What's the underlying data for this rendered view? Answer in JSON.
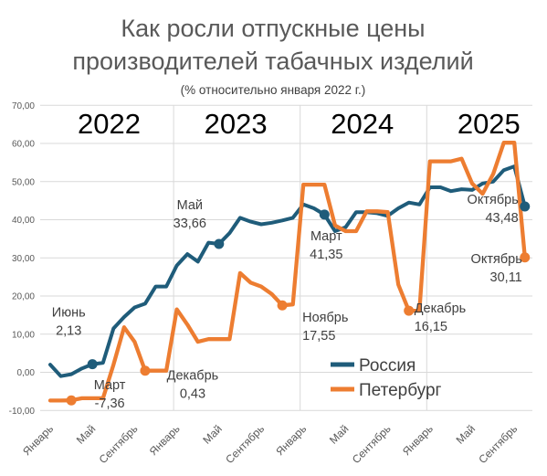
{
  "chart_data": {
    "type": "line",
    "title": [
      "Как росли отпускные цены",
      "производителей табачных изделий"
    ],
    "subtitle": "(% относительно января 2022 г.)",
    "ylim": [
      -10,
      70
    ],
    "y_ticks": [
      "-10,00",
      "0,00",
      "10,00",
      "20,00",
      "30,00",
      "40,00",
      "50,00",
      "60,00",
      "70,00"
    ],
    "y_tick_values": [
      -10,
      0,
      10,
      20,
      30,
      40,
      50,
      60,
      70
    ],
    "x_ticks": [
      {
        "index": 0,
        "label": "Январь"
      },
      {
        "index": 4,
        "label": "Май"
      },
      {
        "index": 8,
        "label": "Сентябрь"
      },
      {
        "index": 12,
        "label": "Январь"
      },
      {
        "index": 16,
        "label": "Май"
      },
      {
        "index": 20,
        "label": "Сентябрь"
      },
      {
        "index": 24,
        "label": "Январь"
      },
      {
        "index": 28,
        "label": "Май"
      },
      {
        "index": 32,
        "label": "Сентябрь"
      },
      {
        "index": 36,
        "label": "Январь"
      },
      {
        "index": 40,
        "label": "Май"
      },
      {
        "index": 44,
        "label": "Сентябрь"
      }
    ],
    "years": [
      {
        "label": "2022",
        "start": 0
      },
      {
        "label": "2023",
        "start": 12
      },
      {
        "label": "2024",
        "start": 24
      },
      {
        "label": "2025",
        "start": 36
      }
    ],
    "grid": true,
    "legend_position": "bottom-right",
    "series": [
      {
        "name": "Россия",
        "color": "#1f5c7a",
        "values": [
          2.0,
          -1.0,
          -0.5,
          1.0,
          2.13,
          2.5,
          11.5,
          14.5,
          17.0,
          18.0,
          22.5,
          22.5,
          28.0,
          31.0,
          29.0,
          34.0,
          33.66,
          36.5,
          40.5,
          39.5,
          38.8,
          39.2,
          39.8,
          40.5,
          44.0,
          43.0,
          41.35,
          37.0,
          38.0,
          42.0,
          42.0,
          41.7,
          41.0,
          43.0,
          44.5,
          44.0,
          48.5,
          48.5,
          47.5,
          48.0,
          47.8,
          49.5,
          50.0,
          53.0,
          54.0,
          43.48
        ]
      },
      {
        "name": "Петербург",
        "color": "#ed7d31",
        "values": [
          -7.4,
          -7.4,
          -7.36,
          -6.8,
          -6.8,
          -6.8,
          2.0,
          11.8,
          8.0,
          0.43,
          0.43,
          0.43,
          16.5,
          12.5,
          8.0,
          8.7,
          8.7,
          8.7,
          26.0,
          23.5,
          22.5,
          20.5,
          17.55,
          17.8,
          49.2,
          49.2,
          49.2,
          38.5,
          37.0,
          37.0,
          42.2,
          42.2,
          42.0,
          23.0,
          16.15,
          16.15,
          55.3,
          55.3,
          55.3,
          56.0,
          49.5,
          46.8,
          52.0,
          60.2,
          60.2,
          30.11
        ]
      }
    ],
    "annotations": [
      {
        "series": 0,
        "index": 4,
        "label": "Июнь",
        "value": "2,13"
      },
      {
        "series": 1,
        "index": 2,
        "label": "Март",
        "value": "-7,36"
      },
      {
        "series": 1,
        "index": 9,
        "label": "Декабрь",
        "value": "0,43"
      },
      {
        "series": 0,
        "index": 16,
        "label": "Май",
        "value": "33,66"
      },
      {
        "series": 1,
        "index": 22,
        "label": "Ноябрь",
        "value": "17,55"
      },
      {
        "series": 0,
        "index": 26,
        "label": "Март",
        "value": "41,35"
      },
      {
        "series": 1,
        "index": 34,
        "label": "Декабрь",
        "value": "16,15"
      },
      {
        "series": 0,
        "index": 45,
        "label": "Октябрь",
        "value": "43,48"
      },
      {
        "series": 1,
        "index": 45,
        "label": "Октябрь",
        "value": "30,11"
      }
    ]
  }
}
